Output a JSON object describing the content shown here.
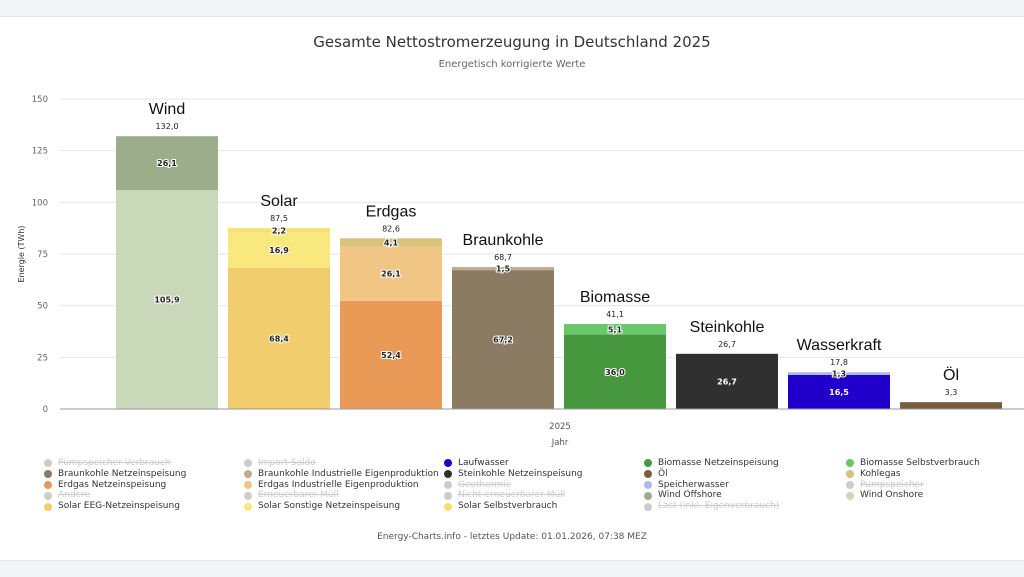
{
  "chart_data": {
    "type": "bar",
    "stacked": true,
    "title": "Gesamte Nettostromerzeugung in Deutschland 2025",
    "subtitle": "Energetisch korrigierte Werte",
    "ylabel": "Energie (TWh)",
    "xlabel": "Jahr",
    "xtick": "2025",
    "ylim": [
      0,
      150
    ],
    "yticks": [
      "0",
      "25",
      "50",
      "75",
      "100",
      "125",
      "150"
    ],
    "grid": true,
    "groups": [
      {
        "name": "Wind",
        "total": "132,0",
        "segments": [
          {
            "series": "Wind Onshore",
            "value": 105.9,
            "label": "105,9",
            "color": "#c8d8b9"
          },
          {
            "series": "Wind Offshore",
            "value": 26.1,
            "label": "26,1",
            "color": "#9cad8c"
          }
        ]
      },
      {
        "name": "Solar",
        "total": "87,5",
        "segments": [
          {
            "series": "Solar EEG-Netzeinspeisung",
            "value": 68.4,
            "label": "68,4",
            "color": "#f2cd6e"
          },
          {
            "series": "Solar Sonstige Netzeinspeisung",
            "value": 16.9,
            "label": "16,9",
            "color": "#f8e87e"
          },
          {
            "series": "Solar Selbstverbrauch",
            "value": 2.2,
            "label": "2,2",
            "color": "#f7e070"
          }
        ]
      },
      {
        "name": "Erdgas",
        "total": "82,6",
        "segments": [
          {
            "series": "Erdgas Netzeinspeisung",
            "value": 52.4,
            "label": "52,4",
            "color": "#e89a56"
          },
          {
            "series": "Erdgas Industrielle Eigenproduktion",
            "value": 26.1,
            "label": "26,1",
            "color": "#f1c685"
          },
          {
            "series": "Kohlegas",
            "value": 4.1,
            "label": "4,1",
            "color": "#d8c27c"
          }
        ]
      },
      {
        "name": "Braunkohle",
        "total": "68,7",
        "segments": [
          {
            "series": "Braunkohle Netzeinspeisung",
            "value": 67.2,
            "label": "67,2",
            "color": "#8c7b63"
          },
          {
            "series": "Braunkohle Industrielle Eigenproduktion",
            "value": 1.5,
            "label": "1,5",
            "color": "#c2ab8e"
          }
        ]
      },
      {
        "name": "Biomasse",
        "total": "41,1",
        "segments": [
          {
            "series": "Biomasse Netzeinspeisung",
            "value": 36.0,
            "label": "36,0",
            "color": "#46973d"
          },
          {
            "series": "Biomasse Selbstverbrauch",
            "value": 5.1,
            "label": "5,1",
            "color": "#66c868"
          }
        ]
      },
      {
        "name": "Steinkohle",
        "total": "26,7",
        "segments": [
          {
            "series": "Steinkohle Netzeinspeisung",
            "value": 26.7,
            "label": "26,7",
            "color": "#303030"
          }
        ]
      },
      {
        "name": "Wasserkraft",
        "total": "17,8",
        "segments": [
          {
            "series": "Laufwasser",
            "value": 16.5,
            "label": "16,5",
            "color": "#2200cc"
          },
          {
            "series": "Speicherwasser",
            "value": 1.3,
            "label": "1,3",
            "color": "#a9b9f2"
          }
        ]
      },
      {
        "name": "Öl",
        "total": "3,3",
        "segments": [
          {
            "series": "Öl",
            "value": 3.3,
            "label": "",
            "color": "#7a5d3e"
          }
        ]
      }
    ],
    "legend_placement": "bottom",
    "legend": [
      {
        "label": "Pumpspeicher Verbrauch",
        "color": "#cccccc",
        "hidden": true
      },
      {
        "label": "Import Saldo",
        "color": "#cccccc",
        "hidden": true
      },
      {
        "label": "Laufwasser",
        "color": "#2200cc"
      },
      {
        "label": "Biomasse Netzeinspeisung",
        "color": "#46973d"
      },
      {
        "label": "Biomasse Selbstverbrauch",
        "color": "#66c868"
      },
      {
        "label": "Braunkohle Netzeinspeisung",
        "color": "#8c7b63"
      },
      {
        "label": "Braunkohle Industrielle Eigenproduktion",
        "color": "#c2ab8e"
      },
      {
        "label": "Steinkohle Netzeinspeisung",
        "color": "#303030"
      },
      {
        "label": "Öl",
        "color": "#7a5d3e"
      },
      {
        "label": "Kohlegas",
        "color": "#d8c27c"
      },
      {
        "label": "Erdgas Netzeinspeisung",
        "color": "#e89a56"
      },
      {
        "label": "Erdgas Industrielle Eigenproduktion",
        "color": "#f1c685"
      },
      {
        "label": "Geothermie",
        "color": "#cccccc",
        "hidden": true
      },
      {
        "label": "Speicherwasser",
        "color": "#a9b9f2"
      },
      {
        "label": "Pumpspeicher",
        "color": "#cccccc",
        "hidden": true
      },
      {
        "label": "Andere",
        "color": "#cccccc",
        "hidden": true
      },
      {
        "label": "Erneuerbarer Müll",
        "color": "#cccccc",
        "hidden": true
      },
      {
        "label": "Nicht-erneuerbarer Müll",
        "color": "#cccccc",
        "hidden": true
      },
      {
        "label": "Wind Offshore",
        "color": "#9cad8c"
      },
      {
        "label": "Wind Onshore",
        "color": "#c8d8b9"
      },
      {
        "label": "Solar EEG-Netzeinspeisung",
        "color": "#f2cd6e"
      },
      {
        "label": "Solar Sonstige Netzeinspeisung",
        "color": "#f8e87e"
      },
      {
        "label": "Solar Selbstverbrauch",
        "color": "#f7e070"
      },
      {
        "label": "Last (inkl. Eigenverbrauch)",
        "color": "#cccccc",
        "hidden": true
      }
    ]
  },
  "footer": {
    "credit": "Energy-Charts.info - letztes Update: 01.01.2026, 07:38 MEZ"
  }
}
